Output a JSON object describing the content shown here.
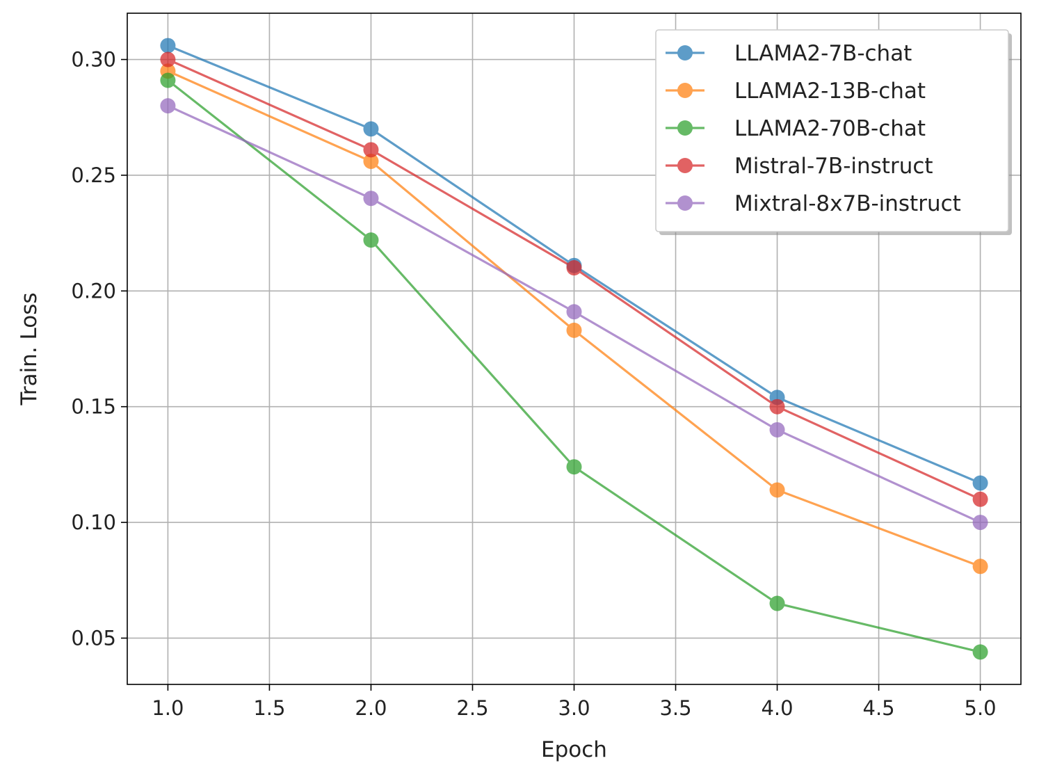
{
  "chart_data": {
    "type": "line",
    "title": "",
    "xlabel": "Epoch",
    "ylabel": "Train. Loss",
    "xlim": [
      0.8,
      5.2
    ],
    "ylim": [
      0.03,
      0.32
    ],
    "xticks": [
      1.0,
      1.5,
      2.0,
      2.5,
      3.0,
      3.5,
      4.0,
      4.5,
      5.0
    ],
    "yticks": [
      0.05,
      0.1,
      0.15,
      0.2,
      0.25,
      0.3
    ],
    "grid": true,
    "legend_position": "upper-right",
    "x": [
      1,
      2,
      3,
      4,
      5
    ],
    "series": [
      {
        "name": "LLAMA2-7B-chat",
        "color": "#1f77b4",
        "values": [
          0.306,
          0.27,
          0.211,
          0.154,
          0.117
        ]
      },
      {
        "name": "LLAMA2-13B-chat",
        "color": "#ff7f0e",
        "values": [
          0.295,
          0.256,
          0.183,
          0.114,
          0.081
        ]
      },
      {
        "name": "LLAMA2-70B-chat",
        "color": "#2ca02c",
        "values": [
          0.291,
          0.222,
          0.124,
          0.065,
          0.044
        ]
      },
      {
        "name": "Mistral-7B-instruct",
        "color": "#d62728",
        "values": [
          0.3,
          0.261,
          0.21,
          0.15,
          0.11
        ]
      },
      {
        "name": "Mixtral-8x7B-instruct",
        "color": "#9467bd",
        "values": [
          0.28,
          0.24,
          0.191,
          0.14,
          0.1
        ]
      }
    ]
  }
}
